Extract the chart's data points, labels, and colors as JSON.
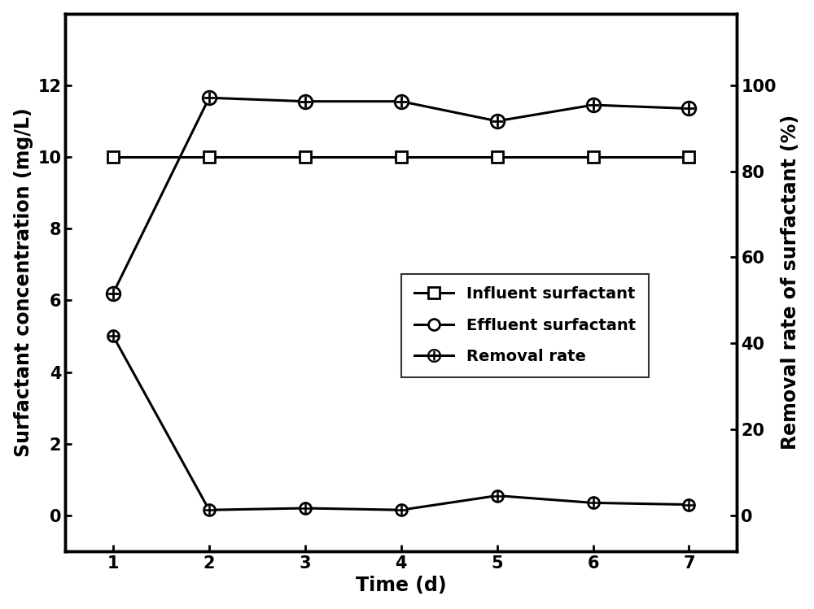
{
  "days": [
    1,
    2,
    3,
    4,
    5,
    6,
    7
  ],
  "influent": [
    10.0,
    10.0,
    10.0,
    10.0,
    10.0,
    10.0,
    10.0
  ],
  "effluent": [
    5.0,
    0.15,
    0.2,
    0.15,
    0.55,
    0.35,
    0.3
  ],
  "removal_rate_left": [
    6.2,
    11.65,
    11.55,
    11.55,
    11.0,
    11.45,
    11.35
  ],
  "ylim_left": [
    -1.0,
    14.0
  ],
  "ylim_right": [
    -8.33,
    116.67
  ],
  "yticks_left": [
    0,
    2,
    4,
    6,
    8,
    10,
    12
  ],
  "yticks_right": [
    0,
    20,
    40,
    60,
    80,
    100
  ],
  "ylabel_left": "Surfactant concentration (mg/L)",
  "ylabel_right": "Removal rate of surfactant (%)",
  "xlabel": "Time (d)",
  "legend_labels": [
    "Influent surfactant",
    "Effluent surfactant",
    "Removal rate"
  ],
  "line_color": "#000000",
  "background_color": "#ffffff",
  "label_fontsize": 17,
  "tick_fontsize": 15,
  "legend_fontsize": 14
}
